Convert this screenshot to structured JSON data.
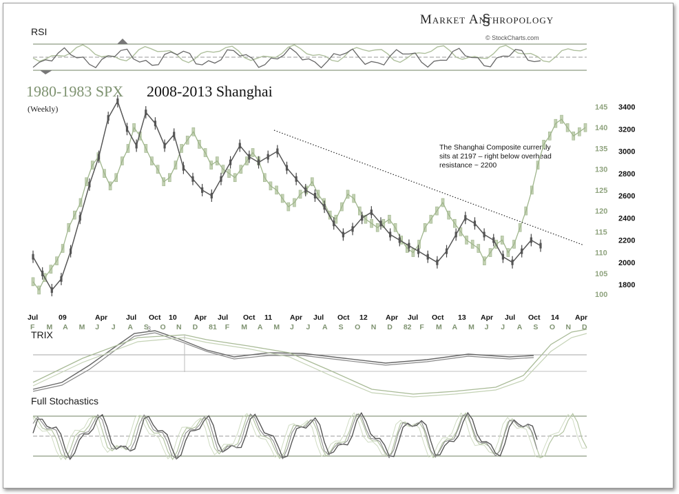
{
  "brand": {
    "name": "Market Anthropology",
    "credit": "© StockCharts.com"
  },
  "chart_data": {
    "type": "line",
    "title": "1980-1983 SPX  2008-2013 Shanghai",
    "subtitle": "(Weekly)",
    "series": [
      {
        "name": "1980-1983 SPX",
        "color": "#9fb58c",
        "axis": "left",
        "values": [
          103,
          101,
          104,
          106,
          108,
          111,
          116,
          119,
          122,
          127,
          131,
          133,
          129,
          126,
          128,
          132,
          135,
          140,
          138,
          135,
          132,
          130,
          127,
          128,
          131,
          135,
          137,
          139,
          136,
          134,
          131,
          132,
          130,
          129,
          128,
          130,
          132,
          134,
          132,
          128,
          126,
          125,
          123,
          121,
          122,
          124,
          125,
          127,
          124,
          122,
          119,
          118,
          121,
          124,
          123,
          120,
          118,
          117,
          116,
          117,
          118,
          116,
          113,
          111,
          110,
          112,
          116,
          118,
          120,
          122,
          119,
          117,
          115,
          113,
          112,
          111,
          108,
          110,
          112,
          113,
          110,
          112,
          116,
          120,
          125,
          131,
          136,
          138,
          141,
          142,
          140,
          138,
          139,
          140
        ]
      },
      {
        "name": "2008-2013 Shanghai",
        "color": "#555555",
        "axis": "right",
        "values": [
          2050,
          1900,
          1750,
          1850,
          2100,
          2400,
          2700,
          2950,
          3300,
          3450,
          3200,
          3050,
          3350,
          3250,
          3050,
          3150,
          2850,
          2750,
          2650,
          2600,
          2750,
          2900,
          3050,
          2950,
          2900,
          2950,
          3000,
          2850,
          2750,
          2650,
          2600,
          2500,
          2350,
          2250,
          2300,
          2400,
          2450,
          2350,
          2250,
          2200,
          2150,
          2100,
          2050,
          2000,
          2100,
          2250,
          2400,
          2350,
          2250,
          2200,
          2050,
          2000,
          2100,
          2200,
          2150
        ]
      }
    ],
    "x_ticks_top": [
      "Jul",
      "09",
      "Apr",
      "Jul",
      "Oct",
      "10",
      "Apr",
      "Jul",
      "Oct",
      "11",
      "Apr",
      "Jul",
      "Oct",
      "12",
      "Apr",
      "Jul",
      "Oct",
      "13",
      "Apr",
      "Jul",
      "Oct",
      "14",
      "Apr"
    ],
    "x_ticks_bottom": [
      "F",
      "M",
      "A",
      "M",
      "J",
      "J",
      "A",
      "S",
      "O",
      "N",
      "D",
      "81",
      "F",
      "M",
      "A",
      "M",
      "J",
      "J",
      "A",
      "S",
      "O",
      "N",
      "D",
      "82",
      "F",
      "M",
      "A",
      "M",
      "J",
      "J",
      "A",
      "S",
      "O",
      "N",
      "D"
    ],
    "y_left_ticks": [
      145,
      140,
      135,
      130,
      125,
      120,
      115,
      110,
      105,
      100
    ],
    "y_right_ticks": [
      3400,
      3200,
      3000,
      2800,
      2600,
      2400,
      2200,
      2000,
      1800
    ],
    "ylim_left": [
      100,
      145
    ],
    "ylim_right": [
      1800,
      3400
    ],
    "annotation": "The Shanghai Composite currently sits at 2197 – right below overhead resistance ~ 2200",
    "trendline": {
      "label": "overhead resistance"
    },
    "rsi": {
      "label": "RSI"
    },
    "trix": {
      "label": "TRIX",
      "marker": "3"
    },
    "stochastics": {
      "label": "Full Stochastics"
    }
  }
}
